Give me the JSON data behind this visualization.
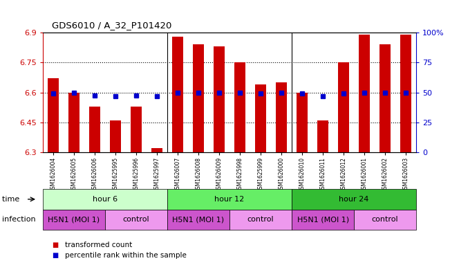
{
  "title": "GDS6010 / A_32_P101420",
  "samples": [
    "GSM1626004",
    "GSM1626005",
    "GSM1626006",
    "GSM1625995",
    "GSM1625996",
    "GSM1625997",
    "GSM1626007",
    "GSM1626008",
    "GSM1626009",
    "GSM1625998",
    "GSM1625999",
    "GSM1626000",
    "GSM1626010",
    "GSM1626011",
    "GSM1626012",
    "GSM1626001",
    "GSM1626002",
    "GSM1626003"
  ],
  "bar_values": [
    6.67,
    6.6,
    6.53,
    6.46,
    6.53,
    6.32,
    6.88,
    6.84,
    6.83,
    6.75,
    6.64,
    6.65,
    6.6,
    6.46,
    6.75,
    6.89,
    6.84,
    6.89
  ],
  "blue_values": [
    6.595,
    6.6,
    6.586,
    6.583,
    6.585,
    6.582,
    6.6,
    6.6,
    6.6,
    6.6,
    6.595,
    6.597,
    6.595,
    6.583,
    6.595,
    6.6,
    6.598,
    6.6
  ],
  "ymin": 6.3,
  "ymax": 6.9,
  "yticks": [
    6.3,
    6.45,
    6.6,
    6.75,
    6.9
  ],
  "ytick_labels": [
    "6.3",
    "6.45",
    "6.6",
    "6.75",
    "6.9"
  ],
  "right_yticks": [
    0,
    25,
    50,
    75,
    100
  ],
  "right_ytick_labels": [
    "0",
    "25",
    "50",
    "75",
    "100%"
  ],
  "dotted_lines": [
    6.45,
    6.6,
    6.75
  ],
  "bar_color": "#cc0000",
  "blue_color": "#0000cc",
  "time_groups": [
    {
      "label": "hour 6",
      "start": 0,
      "end": 6,
      "color": "#ccffcc"
    },
    {
      "label": "hour 12",
      "start": 6,
      "end": 12,
      "color": "#66ee66"
    },
    {
      "label": "hour 24",
      "start": 12,
      "end": 18,
      "color": "#33bb33"
    }
  ],
  "infection_groups": [
    {
      "label": "H5N1 (MOI 1)",
      "start": 0,
      "end": 3,
      "color": "#cc55cc"
    },
    {
      "label": "control",
      "start": 3,
      "end": 6,
      "color": "#ee99ee"
    },
    {
      "label": "H5N1 (MOI 1)",
      "start": 6,
      "end": 9,
      "color": "#cc55cc"
    },
    {
      "label": "control",
      "start": 9,
      "end": 12,
      "color": "#ee99ee"
    },
    {
      "label": "H5N1 (MOI 1)",
      "start": 12,
      "end": 15,
      "color": "#cc55cc"
    },
    {
      "label": "control",
      "start": 15,
      "end": 18,
      "color": "#ee99ee"
    }
  ],
  "legend_items": [
    {
      "label": "transformed count",
      "color": "#cc0000"
    },
    {
      "label": "percentile rank within the sample",
      "color": "#0000cc"
    }
  ],
  "background_color": "#ffffff",
  "left_label_color": "#cc0000",
  "right_label_color": "#0000cc",
  "n_samples": 18
}
